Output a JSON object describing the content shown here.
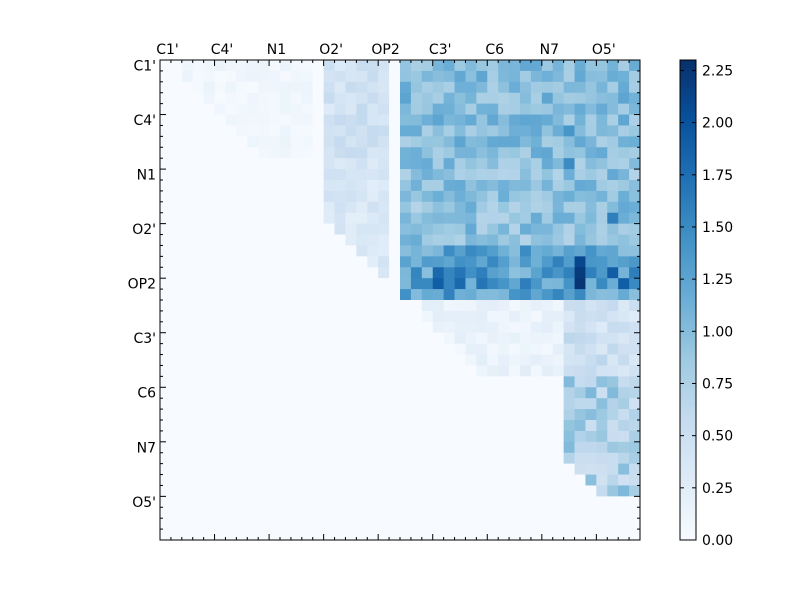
{
  "chart_data": {
    "type": "heatmap",
    "title": "",
    "xlabel": "",
    "ylabel": "",
    "x_tick_labels": [
      "C1'",
      "C4'",
      "N1",
      "O2'",
      "OP2",
      "C3'",
      "C6",
      "N7",
      "O5'"
    ],
    "y_tick_labels": [
      "C1'",
      "C4'",
      "N1",
      "O2'",
      "OP2",
      "C3'",
      "C6",
      "N7",
      "O5'"
    ],
    "grid_size": 44,
    "colormap": "Blues",
    "color_scale": {
      "min": 0.0,
      "max": 2.3
    },
    "colorbar_ticks": [
      "0.00",
      "0.25",
      "0.50",
      "0.75",
      "1.00",
      "1.25",
      "1.50",
      "1.75",
      "2.00",
      "2.25"
    ],
    "colorbar_tick_values": [
      0.0,
      0.25,
      0.5,
      0.75,
      1.0,
      1.25,
      1.5,
      1.75,
      2.0,
      2.25
    ],
    "blocks": [
      {
        "rows": [
          0,
          9
        ],
        "cols": [
          2,
          14
        ],
        "level": 0.08,
        "variance": 0.06
      },
      {
        "rows": [
          0,
          9
        ],
        "cols": [
          15,
          21
        ],
        "level": 0.45,
        "variance": 0.15
      },
      {
        "rows": [
          0,
          9
        ],
        "cols": [
          22,
          44
        ],
        "level": 1.0,
        "variance": 0.25
      },
      {
        "rows": [
          9,
          21
        ],
        "cols": [
          15,
          21
        ],
        "level": 0.35,
        "variance": 0.12
      },
      {
        "rows": [
          9,
          21
        ],
        "cols": [
          22,
          44
        ],
        "level": 0.95,
        "variance": 0.25
      },
      {
        "rows": [
          17,
          22
        ],
        "cols": [
          22,
          44
        ],
        "level": 1.3,
        "variance": 0.35
      },
      {
        "rows": [
          22,
          29
        ],
        "cols": [
          24,
          37
        ],
        "level": 0.15,
        "variance": 0.1
      },
      {
        "rows": [
          22,
          29
        ],
        "cols": [
          37,
          44
        ],
        "level": 0.45,
        "variance": 0.2
      },
      {
        "rows": [
          29,
          40
        ],
        "cols": [
          37,
          44
        ],
        "level": 0.75,
        "variance": 0.3
      }
    ],
    "hot_cells": [
      {
        "row": 18,
        "col": 38,
        "value": 2.1
      },
      {
        "row": 19,
        "col": 38,
        "value": 2.2
      },
      {
        "row": 20,
        "col": 38,
        "value": 2.25
      },
      {
        "row": 19,
        "col": 25,
        "value": 1.8
      },
      {
        "row": 20,
        "col": 25,
        "value": 1.9
      },
      {
        "row": 19,
        "col": 27,
        "value": 1.7
      },
      {
        "row": 20,
        "col": 27,
        "value": 1.8
      },
      {
        "row": 19,
        "col": 29,
        "value": 1.6
      },
      {
        "row": 20,
        "col": 29,
        "value": 1.7
      },
      {
        "row": 19,
        "col": 41,
        "value": 1.9
      },
      {
        "row": 20,
        "col": 42,
        "value": 1.9
      },
      {
        "row": 14,
        "col": 41,
        "value": 1.6
      },
      {
        "row": 9,
        "col": 37,
        "value": 1.5
      },
      {
        "row": 6,
        "col": 37,
        "value": 1.4
      }
    ],
    "seed": 7
  }
}
